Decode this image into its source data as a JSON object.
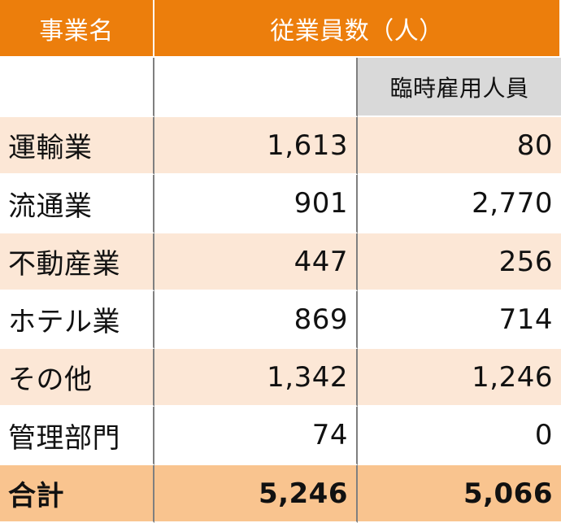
{
  "table": {
    "header": {
      "business_label": "事業名",
      "employees_label": "従業員数（人）",
      "temp_label": "臨時雇用人員"
    },
    "rows": [
      {
        "name": "運輸業",
        "employees": "1,613",
        "temp": "80"
      },
      {
        "name": "流通業",
        "employees": "901",
        "temp": "2,770"
      },
      {
        "name": "不動産業",
        "employees": "447",
        "temp": "256"
      },
      {
        "name": "ホテル業",
        "employees": "869",
        "temp": "714"
      },
      {
        "name": "その他",
        "employees": "1,342",
        "temp": "1,246"
      },
      {
        "name": "管理部門",
        "employees": "74",
        "temp": "0"
      }
    ],
    "total": {
      "name": "合計",
      "employees": "5,246",
      "temp": "5,066"
    }
  },
  "colors": {
    "header_orange": "#ec7e0c",
    "row_light_orange": "#fce7d6",
    "total_orange": "#f9c48f",
    "subheader_gray": "#d9d9d9"
  }
}
